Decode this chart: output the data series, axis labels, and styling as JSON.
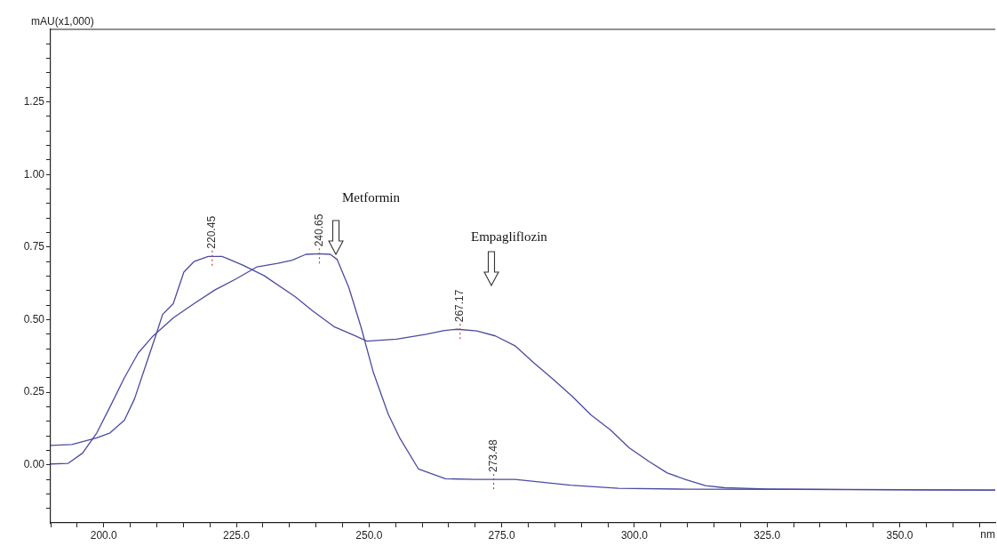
{
  "chart_data": {
    "type": "line",
    "xlabel": "nm",
    "ylabel": "mAU(x1,000)",
    "legend": false,
    "marker": "none",
    "line_style": "solid",
    "grid": false,
    "xlim": [
      190,
      368
    ],
    "ylim": [
      -0.2,
      1.5
    ],
    "xticks": [
      {
        "value": 190,
        "label": null
      },
      {
        "value": 195,
        "label": null
      },
      {
        "value": 200,
        "label": "200.0"
      },
      {
        "value": 205,
        "label": null
      },
      {
        "value": 210,
        "label": null
      },
      {
        "value": 215,
        "label": null
      },
      {
        "value": 220,
        "label": null
      },
      {
        "value": 225,
        "label": "225.0"
      },
      {
        "value": 230,
        "label": null
      },
      {
        "value": 235,
        "label": null
      },
      {
        "value": 240,
        "label": null
      },
      {
        "value": 245,
        "label": null
      },
      {
        "value": 250,
        "label": "250.0"
      },
      {
        "value": 255,
        "label": null
      },
      {
        "value": 260,
        "label": null
      },
      {
        "value": 265,
        "label": null
      },
      {
        "value": 270,
        "label": null
      },
      {
        "value": 275,
        "label": "275.0"
      },
      {
        "value": 280,
        "label": null
      },
      {
        "value": 285,
        "label": null
      },
      {
        "value": 290,
        "label": null
      },
      {
        "value": 295,
        "label": null
      },
      {
        "value": 300,
        "label": "300.0"
      },
      {
        "value": 305,
        "label": null
      },
      {
        "value": 310,
        "label": null
      },
      {
        "value": 315,
        "label": null
      },
      {
        "value": 320,
        "label": null
      },
      {
        "value": 325,
        "label": "325.0"
      },
      {
        "value": 330,
        "label": null
      },
      {
        "value": 335,
        "label": null
      },
      {
        "value": 340,
        "label": null
      },
      {
        "value": 345,
        "label": null
      },
      {
        "value": 350,
        "label": "350.0"
      },
      {
        "value": 355,
        "label": null
      },
      {
        "value": 360,
        "label": null
      },
      {
        "value": 365,
        "label": null
      }
    ],
    "yticks": [
      {
        "value": -0.15,
        "label": null
      },
      {
        "value": -0.1,
        "label": null
      },
      {
        "value": -0.05,
        "label": null
      },
      {
        "value": 0,
        "label": "0.00"
      },
      {
        "value": 0.05,
        "label": null
      },
      {
        "value": 0.1,
        "label": null
      },
      {
        "value": 0.15,
        "label": null
      },
      {
        "value": 0.2,
        "label": null
      },
      {
        "value": 0.25,
        "label": "0.25"
      },
      {
        "value": 0.3,
        "label": null
      },
      {
        "value": 0.35,
        "label": null
      },
      {
        "value": 0.4,
        "label": null
      },
      {
        "value": 0.45,
        "label": null
      },
      {
        "value": 0.5,
        "label": "0.50"
      },
      {
        "value": 0.55,
        "label": null
      },
      {
        "value": 0.6,
        "label": null
      },
      {
        "value": 0.65,
        "label": null
      },
      {
        "value": 0.7,
        "label": null
      },
      {
        "value": 0.75,
        "label": "0.75"
      },
      {
        "value": 0.8,
        "label": null
      },
      {
        "value": 0.85,
        "label": null
      },
      {
        "value": 0.9,
        "label": null
      },
      {
        "value": 0.95,
        "label": null
      },
      {
        "value": 1,
        "label": "1.00"
      },
      {
        "value": 1.05,
        "label": null
      },
      {
        "value": 1.1,
        "label": null
      },
      {
        "value": 1.15,
        "label": null
      },
      {
        "value": 1.2,
        "label": null
      },
      {
        "value": 1.25,
        "label": "1.25"
      },
      {
        "value": 1.3,
        "label": null
      },
      {
        "value": 1.35,
        "label": null
      },
      {
        "value": 1.4,
        "label": null
      },
      {
        "value": 1.45,
        "label": null
      }
    ],
    "series": [
      {
        "color": "#4b4ba0",
        "x": [
          190,
          194,
          198.7,
          201.2,
          203.9,
          205.8,
          207.8,
          209.8,
          211.1,
          213.1,
          215.1,
          217,
          219.7,
          222.3,
          226.2,
          230.2,
          236.1,
          239.4,
          243.4,
          247.3,
          249.6,
          255.2,
          260.8,
          264,
          266.6,
          270.3,
          273.8,
          277.5,
          281,
          284.5,
          288.2,
          291.8,
          295.5,
          299,
          302.7,
          306.2,
          309.7,
          313.4,
          317,
          325,
          340,
          355,
          368
        ],
        "values": [
          0.067,
          0.07,
          0.093,
          0.11,
          0.154,
          0.227,
          0.336,
          0.445,
          0.518,
          0.555,
          0.664,
          0.7,
          0.718,
          0.718,
          0.688,
          0.652,
          0.579,
          0.53,
          0.476,
          0.445,
          0.426,
          0.433,
          0.45,
          0.462,
          0.467,
          0.461,
          0.444,
          0.41,
          0.352,
          0.298,
          0.237,
          0.172,
          0.12,
          0.059,
          0.012,
          -0.028,
          -0.051,
          -0.072,
          -0.079,
          -0.083,
          -0.085,
          -0.086,
          -0.087
        ]
      },
      {
        "color": "#4b4ba0",
        "x": [
          190,
          193.3,
          196,
          198.7,
          201.2,
          203.9,
          206.5,
          209.1,
          213.1,
          217,
          221,
          224.9,
          228.9,
          232.8,
          235.5,
          238.1,
          240.65,
          242.7,
          244,
          246.2,
          248.5,
          250.8,
          253.6,
          255.8,
          259.3,
          264.4,
          270,
          277.5,
          288,
          297,
          310,
          330,
          350,
          368
        ],
        "values": [
          0.003,
          0.005,
          0.04,
          0.11,
          0.2,
          0.3,
          0.385,
          0.44,
          0.506,
          0.555,
          0.603,
          0.64,
          0.682,
          0.694,
          0.705,
          0.725,
          0.727,
          0.725,
          0.707,
          0.61,
          0.474,
          0.319,
          0.175,
          0.092,
          -0.014,
          -0.048,
          -0.05,
          -0.05,
          -0.07,
          -0.081,
          -0.084,
          -0.085,
          -0.086,
          -0.087
        ]
      }
    ],
    "annotations": [
      {
        "text": "220.45",
        "x": 220.45,
        "y": 0.72
      },
      {
        "text": "240.65",
        "x": 240.65,
        "y": 0.727
      },
      {
        "text": "267.17",
        "x": 267.17,
        "y": 0.467
      },
      {
        "text": "273.48",
        "x": 273.48,
        "y": -0.05
      },
      "Metformin",
      "Empagliflozin"
    ]
  }
}
